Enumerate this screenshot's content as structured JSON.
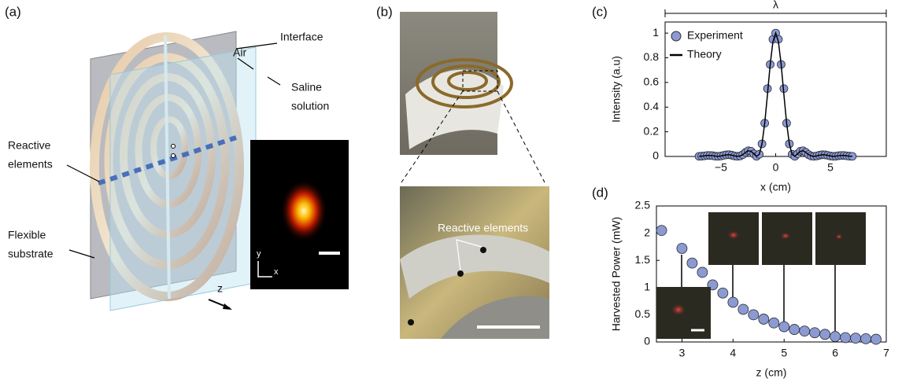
{
  "panel_labels": [
    "(a)",
    "(b)",
    "(c)",
    "(d)"
  ],
  "illustration": {
    "interface": "Interface",
    "air": "Air",
    "saline": [
      "Saline",
      "solution"
    ],
    "reactive": [
      "Reactive",
      "elements"
    ],
    "substrate": [
      "Flexible",
      "substrate"
    ],
    "axis_z": "z",
    "axis_y": "y",
    "axis_x": "x"
  },
  "photo": {
    "reactive": "Reactive elements"
  },
  "chart_data": [
    {
      "type": "scatter",
      "annotation": "λ",
      "xlabel": "x (cm)",
      "ylabel": "Intensity (a.u)",
      "x": [
        -7,
        -6.75,
        -6.5,
        -6.25,
        -6,
        -5.75,
        -5.5,
        -5.25,
        -5,
        -4.75,
        -4.5,
        -4.25,
        -4,
        -3.75,
        -3.5,
        -3.25,
        -3,
        -2.75,
        -2.5,
        -2.25,
        -2,
        -1.75,
        -1.5,
        -1.25,
        -1,
        -0.75,
        -0.5,
        -0.25,
        0,
        0.25,
        0.5,
        0.75,
        1,
        1.25,
        1.5,
        1.75,
        2,
        2.25,
        2.5,
        2.75,
        3,
        3.25,
        3.5,
        3.75,
        4,
        4.25,
        4.5,
        4.75,
        5,
        5.25,
        5.5,
        5.75,
        6,
        6.25,
        6.5,
        6.75,
        7
      ],
      "series": [
        {
          "name": "Experiment",
          "color": "#8b9bd1",
          "mark": "circle",
          "values": [
            0.001,
            0.002,
            0.005,
            0.008,
            0.008,
            0.006,
            0.002,
            0.001,
            0.004,
            0.009,
            0.013,
            0.014,
            0.01,
            0.004,
            0.001,
            0.004,
            0.015,
            0.033,
            0.046,
            0.042,
            0.021,
            0.001,
            0.017,
            0.102,
            0.27,
            0.55,
            0.746,
            0.95,
            1,
            0.95,
            0.746,
            0.55,
            0.27,
            0.102,
            0.017,
            0.001,
            0.021,
            0.042,
            0.046,
            0.033,
            0.015,
            0.004,
            0.001,
            0.004,
            0.01,
            0.014,
            0.013,
            0.009,
            0.004,
            0.001,
            0.002,
            0.006,
            0.008,
            0.008,
            0.005,
            0.002,
            0.001
          ]
        },
        {
          "name": "Theory",
          "color": "#000000",
          "mark": "line",
          "values": [
            0.001,
            0.002,
            0.005,
            0.008,
            0.008,
            0.006,
            0.002,
            0.001,
            0.004,
            0.009,
            0.013,
            0.014,
            0.01,
            0.004,
            0.001,
            0.004,
            0.015,
            0.033,
            0.046,
            0.042,
            0.021,
            0.001,
            0.017,
            0.102,
            0.27,
            0.502,
            0.746,
            0.931,
            1,
            0.931,
            0.746,
            0.502,
            0.27,
            0.102,
            0.017,
            0.001,
            0.021,
            0.042,
            0.046,
            0.033,
            0.015,
            0.004,
            0.001,
            0.004,
            0.01,
            0.014,
            0.013,
            0.009,
            0.004,
            0.001,
            0.002,
            0.006,
            0.008,
            0.008,
            0.005,
            0.002,
            0.001
          ]
        }
      ],
      "xlim": [
        -10.1,
        10.1
      ],
      "ylim": [
        0,
        1.09
      ],
      "xticks": [
        {
          "value": -5,
          "label": "−5"
        },
        0,
        5
      ],
      "yticks": [
        0,
        0.2,
        0.4,
        0.6,
        0.8,
        1
      ],
      "legend": "upper left"
    },
    {
      "type": "scatter",
      "xlabel": "z (cm)",
      "ylabel": "Harvested Power (mW)",
      "x": [
        2.6,
        3,
        3.2,
        3.4,
        3.6,
        3.8,
        4,
        4.2,
        4.4,
        4.6,
        4.8,
        5,
        5.2,
        5.4,
        5.6,
        5.8,
        6,
        6.2,
        6.4,
        6.6,
        6.8
      ],
      "values": [
        2.05,
        1.72,
        1.45,
        1.28,
        1.05,
        0.9,
        0.73,
        0.6,
        0.5,
        0.42,
        0.35,
        0.28,
        0.23,
        0.2,
        0.17,
        0.14,
        0.1,
        0.08,
        0.07,
        0.06,
        0.05
      ],
      "color": "#8b9bd1",
      "xlim": [
        2.5,
        7
      ],
      "ylim": [
        0,
        2.5
      ],
      "xticks": [
        3,
        4,
        5,
        6,
        7
      ],
      "yticks": [
        0,
        0.5,
        1,
        1.5,
        2,
        2.5
      ]
    }
  ]
}
